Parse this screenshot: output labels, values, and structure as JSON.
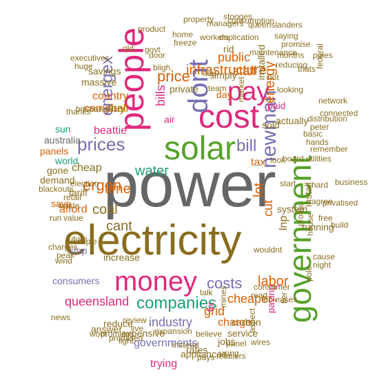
{
  "palette": {
    "grey": "#666666",
    "olive": "#8a6d1e",
    "green": "#57a12b",
    "magenta": "#e0287d",
    "orange": "#d95f02",
    "purple": "#7570b3",
    "teal": "#1b9e77"
  },
  "words": [
    {
      "text": "power",
      "color": "grey"
    },
    {
      "text": "electricity",
      "color": "olive"
    },
    {
      "text": "government",
      "color": "green"
    },
    {
      "text": "solar",
      "color": "green"
    },
    {
      "text": "people",
      "color": "magenta"
    },
    {
      "text": "cost",
      "color": "magenta"
    },
    {
      "text": "pay",
      "color": "magenta"
    },
    {
      "text": "money",
      "color": "magenta"
    },
    {
      "text": "dont",
      "color": "purple"
    },
    {
      "text": "prices",
      "color": "purple"
    },
    {
      "text": "newman",
      "color": "purple"
    },
    {
      "text": "bill",
      "color": "purple"
    },
    {
      "text": "energex",
      "color": "purple"
    },
    {
      "text": "companies",
      "color": "teal"
    },
    {
      "text": "costs",
      "color": "purple"
    },
    {
      "text": "infrastructure",
      "color": "orange"
    },
    {
      "text": "price",
      "color": "orange"
    },
    {
      "text": "bills",
      "color": "magenta"
    },
    {
      "text": "energy",
      "color": "orange"
    },
    {
      "text": "water",
      "color": "teal"
    },
    {
      "text": "ergon",
      "color": "orange"
    },
    {
      "text": "time",
      "color": "orange"
    },
    {
      "text": "coal",
      "color": "olive"
    },
    {
      "text": "cant",
      "color": "olive"
    },
    {
      "text": "labor",
      "color": "orange"
    },
    {
      "text": "cheaper",
      "color": "orange"
    },
    {
      "text": "industry",
      "color": "purple"
    },
    {
      "text": "queensland",
      "color": "magenta"
    },
    {
      "text": "campbell",
      "color": "orange"
    },
    {
      "text": "beattie",
      "color": "magenta"
    },
    {
      "text": "tax",
      "color": "orange"
    },
    {
      "text": "lot",
      "color": "orange"
    },
    {
      "text": "cut",
      "color": "orange"
    },
    {
      "text": "staff",
      "color": "orange"
    },
    {
      "text": "public",
      "color": "orange"
    },
    {
      "text": "installed",
      "color": "olive"
    },
    {
      "text": "paid",
      "color": "magenta"
    },
    {
      "text": "grid",
      "color": "orange"
    },
    {
      "text": "charge",
      "color": "orange"
    },
    {
      "text": "paying",
      "color": "magenta"
    },
    {
      "text": "lnp",
      "color": "olive"
    },
    {
      "text": "governments",
      "color": "purple"
    },
    {
      "text": "air",
      "color": "magenta"
    },
    {
      "text": "buy",
      "color": "olive"
    },
    {
      "text": "country",
      "color": "orange"
    },
    {
      "text": "savings",
      "color": "olive"
    },
    {
      "text": "massive",
      "color": "olive"
    },
    {
      "text": "afford",
      "color": "orange"
    },
    {
      "text": "save",
      "color": "orange"
    },
    {
      "text": "tariff",
      "color": "olive"
    },
    {
      "text": "cheap",
      "color": "olive"
    },
    {
      "text": "world",
      "color": "teal"
    },
    {
      "text": "sun",
      "color": "teal"
    },
    {
      "text": "australia",
      "color": "grey"
    },
    {
      "text": "panels",
      "color": "orange"
    },
    {
      "text": "expensive",
      "color": "olive"
    },
    {
      "text": "increase",
      "color": "olive"
    },
    {
      "text": "reduce",
      "color": "olive"
    },
    {
      "text": "service",
      "color": "olive"
    },
    {
      "text": "carbon",
      "color": "olive"
    },
    {
      "text": "trying",
      "color": "magenta"
    },
    {
      "text": "actually",
      "color": "olive"
    },
    {
      "text": "rid",
      "color": "olive"
    },
    {
      "text": "day",
      "color": "orange"
    },
    {
      "text": "simply",
      "color": "olive"
    },
    {
      "text": "private",
      "color": "olive"
    },
    {
      "text": "sold",
      "color": "olive"
    },
    {
      "text": "fix",
      "color": "magenta"
    },
    {
      "text": "gone",
      "color": "olive"
    },
    {
      "text": "demand",
      "color": "olive"
    },
    {
      "text": "stop",
      "color": "purple"
    },
    {
      "text": "answer",
      "color": "olive"
    },
    {
      "text": "wont",
      "color": "olive"
    },
    {
      "text": "consumers",
      "color": "purple"
    },
    {
      "text": "appliances",
      "color": "olive"
    },
    {
      "text": "rates",
      "color": "olive"
    },
    {
      "text": "jobs",
      "color": "olive"
    },
    {
      "text": "panel",
      "color": "olive"
    },
    {
      "text": "system",
      "color": "olive"
    },
    {
      "text": "running",
      "color": "olive"
    },
    {
      "text": "install",
      "color": "olive"
    },
    {
      "text": "profits",
      "color": "olive"
    },
    {
      "text": "remember",
      "color": "olive"
    },
    {
      "text": "hands",
      "color": "olive"
    },
    {
      "text": "basic",
      "color": "olive"
    },
    {
      "text": "peter",
      "color": "olive"
    },
    {
      "text": "utilities",
      "color": "olive"
    },
    {
      "text": "hard",
      "color": "olive"
    },
    {
      "text": "free",
      "color": "olive"
    },
    {
      "text": "house",
      "color": "olive"
    },
    {
      "text": "cause",
      "color": "olive"
    },
    {
      "text": "night",
      "color": "olive"
    },
    {
      "text": "looking",
      "color": "olive"
    },
    {
      "text": "start",
      "color": "olive"
    },
    {
      "text": "board",
      "color": "olive"
    },
    {
      "text": "look",
      "color": "olive"
    },
    {
      "text": "hot",
      "color": "olive"
    },
    {
      "text": "market",
      "color": "olive"
    },
    {
      "text": "team",
      "color": "olive"
    },
    {
      "text": "add",
      "color": "olive"
    },
    {
      "text": "bligh",
      "color": "olive"
    },
    {
      "text": "door",
      "color": "olive"
    },
    {
      "text": "govt",
      "color": "olive"
    },
    {
      "text": "qld",
      "color": "olive"
    },
    {
      "text": "waste",
      "color": "olive"
    },
    {
      "text": "brisbane",
      "color": "olive"
    },
    {
      "text": "thanks",
      "color": "olive"
    },
    {
      "text": "executives",
      "color": "olive"
    },
    {
      "text": "huge",
      "color": "olive"
    },
    {
      "text": "maintenance",
      "color": "olive"
    },
    {
      "text": "workers",
      "color": "olive"
    },
    {
      "text": "freeze",
      "color": "olive"
    },
    {
      "text": "duplication",
      "color": "olive"
    },
    {
      "text": "reducing",
      "color": "olive"
    },
    {
      "text": "distribution",
      "color": "olive"
    },
    {
      "text": "consumer",
      "color": "olive"
    },
    {
      "text": "wouldnt",
      "color": "olive"
    },
    {
      "text": "increases",
      "color": "olive"
    },
    {
      "text": "read",
      "color": "olive"
    },
    {
      "text": "talk",
      "color": "olive"
    },
    {
      "text": "believe",
      "color": "olive"
    },
    {
      "text": "review",
      "color": "olive"
    },
    {
      "text": "live",
      "color": "olive"
    },
    {
      "text": "light",
      "color": "olive"
    },
    {
      "text": "promises",
      "color": "olive"
    },
    {
      "text": "peak",
      "color": "olive"
    },
    {
      "text": "wind",
      "color": "olive"
    },
    {
      "text": "charges",
      "color": "olive"
    },
    {
      "text": "run",
      "color": "olive"
    },
    {
      "text": "retail",
      "color": "olive"
    },
    {
      "text": "election",
      "color": "olive"
    },
    {
      "text": "simple",
      "color": "olive"
    },
    {
      "text": "future",
      "color": "olive"
    },
    {
      "text": "value",
      "color": "olive"
    },
    {
      "text": "news",
      "color": "olive"
    },
    {
      "text": "business",
      "color": "olive"
    },
    {
      "text": "privatised",
      "color": "olive"
    },
    {
      "text": "agree",
      "color": "olive"
    },
    {
      "text": "mines",
      "color": "olive"
    },
    {
      "text": "aspect",
      "color": "olive"
    },
    {
      "text": "instead",
      "color": "olive"
    },
    {
      "text": "pays",
      "color": "olive"
    },
    {
      "text": "using",
      "color": "olive"
    },
    {
      "text": "tier",
      "color": "olive"
    },
    {
      "text": "pole",
      "color": "olive"
    },
    {
      "text": "poles",
      "color": "olive"
    },
    {
      "text": "federal",
      "color": "olive"
    },
    {
      "text": "home",
      "color": "olive"
    },
    {
      "text": "saying",
      "color": "olive"
    },
    {
      "text": "promise",
      "color": "olive"
    },
    {
      "text": "months",
      "color": "olive"
    },
    {
      "text": "thats",
      "color": "olive"
    },
    {
      "text": "expansion",
      "color": "olive"
    },
    {
      "text": "promised",
      "color": "olive"
    },
    {
      "text": "product",
      "color": "olive"
    },
    {
      "text": "blackouts",
      "color": "olive"
    },
    {
      "text": "wires",
      "color": "olive"
    },
    {
      "text": "retailers",
      "color": "olive"
    },
    {
      "text": "network",
      "color": "olive"
    },
    {
      "text": "build",
      "color": "olive"
    },
    {
      "text": "connected",
      "color": "olive"
    },
    {
      "text": "queenslanders",
      "color": "olive"
    },
    {
      "text": "property",
      "color": "olive"
    },
    {
      "text": "managers",
      "color": "olive"
    },
    {
      "text": "consumption",
      "color": "olive"
    },
    {
      "text": "stooges",
      "color": "olive"
    }
  ]
}
